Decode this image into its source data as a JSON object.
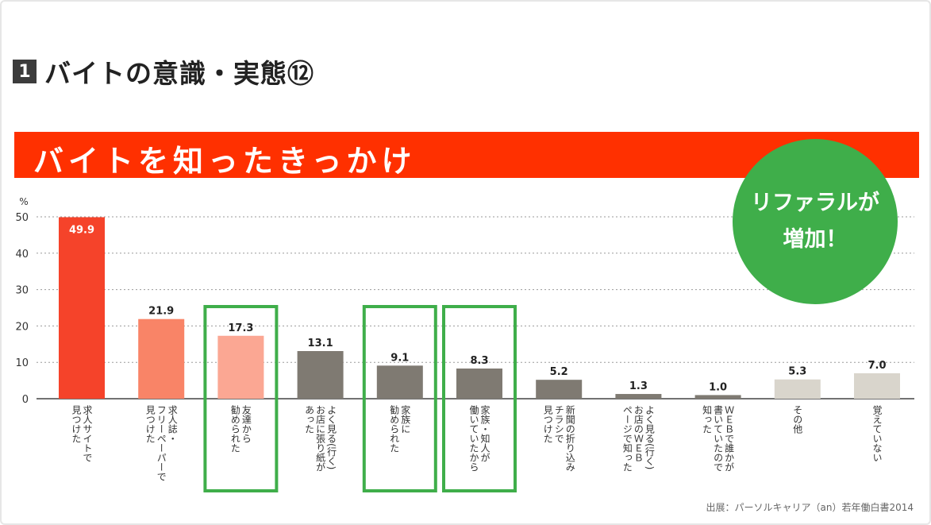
{
  "slide": {
    "section_number": "1",
    "title": "バイトの意識・実態⑫",
    "banner": "バイトを知ったきっかけ",
    "callout_line1": "リファラルが",
    "callout_line2": "増加！",
    "source": "出展：パーソルキャリア（an）若年働白書2014"
  },
  "chart_data": {
    "type": "bar",
    "ylabel": "%",
    "ylim": [
      0,
      50
    ],
    "yticks": [
      0,
      10,
      20,
      30,
      40,
      50
    ],
    "grid": true,
    "categories": [
      "求人サイトで見つけた",
      "求人誌・フリーペーパーで見つけた",
      "友達から勧められた",
      "よく見る(行く)お店に張り紙があった",
      "家族に勧められた",
      "家族・知人が働いていたから",
      "新聞の折り込みチラシで見つけた",
      "よく見る(行く)お店のＷＥＢページで知った",
      "ＷＥＢで誰かが書いていたので知った",
      "その他",
      "覚えていない"
    ],
    "label_lines": [
      [
        "求人サイトで",
        "見つけた"
      ],
      [
        "求人誌・",
        "フリーペーパーで",
        "見つけた"
      ],
      [
        "友達から",
        "勧められた"
      ],
      [
        "よく見る(行く)",
        "お店に張り紙が",
        "あった"
      ],
      [
        "家族に",
        "勧められた"
      ],
      [
        "家族・知人が",
        "働いていたから"
      ],
      [
        "新聞の折り込み",
        "チラシで",
        "見つけた"
      ],
      [
        "よく見る(行く)",
        "お店のＷＥＢ",
        "ページで知った"
      ],
      [
        "ＷＥＢで誰かが",
        "書いていたので",
        "知った"
      ],
      [
        "その他"
      ],
      [
        "覚えていない"
      ]
    ],
    "values": [
      49.9,
      21.9,
      17.3,
      13.1,
      9.1,
      8.3,
      5.2,
      1.3,
      1.0,
      5.3,
      7.0
    ],
    "value_labels": [
      "49.9",
      "21.9",
      "17.3",
      "13.1",
      "9.1",
      "8.3",
      "5.2",
      "1.3",
      "1.0",
      "5.3",
      "7.0"
    ],
    "bar_colors": [
      "#f5432a",
      "#f98467",
      "#fba793",
      "#7f7a72",
      "#7f7a72",
      "#7f7a72",
      "#7f7a72",
      "#7f7a72",
      "#7f7a72",
      "#d9d5cc",
      "#d9d5cc"
    ],
    "highlighted_indices": [
      2,
      4,
      5
    ],
    "highlight_color": "#3fae4a"
  }
}
